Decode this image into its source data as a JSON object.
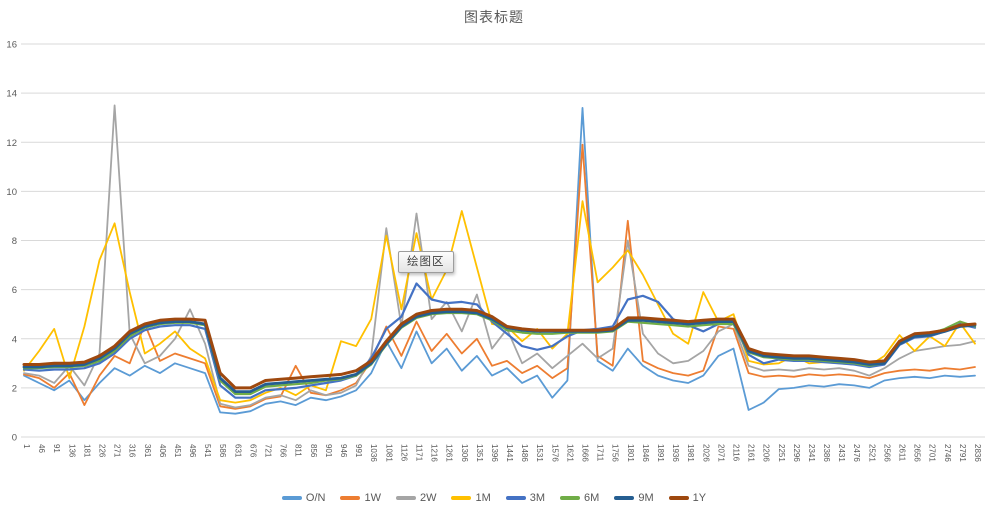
{
  "plot_area_tooltip": {
    "text": "绘图区"
  },
  "chart_data": {
    "type": "line",
    "title": "图表标题",
    "xlabel": "",
    "ylabel": "",
    "ylim": [
      0,
      16
    ],
    "y_ticks": [
      0,
      2,
      4,
      6,
      8,
      10,
      12,
      14,
      16
    ],
    "grid": true,
    "legend_position": "bottom",
    "x": [
      1,
      46,
      91,
      136,
      181,
      226,
      271,
      316,
      361,
      406,
      451,
      496,
      541,
      586,
      631,
      676,
      721,
      766,
      811,
      856,
      901,
      946,
      991,
      1036,
      1081,
      1126,
      1171,
      1216,
      1261,
      1306,
      1351,
      1396,
      1441,
      1486,
      1531,
      1576,
      1621,
      1666,
      1711,
      1756,
      1801,
      1846,
      1891,
      1936,
      1981,
      2026,
      2071,
      2116,
      2161,
      2206,
      2251,
      2296,
      2341,
      2386,
      2431,
      2476,
      2521,
      2566,
      2611,
      2656,
      2701,
      2746,
      2791,
      2836
    ],
    "series": [
      {
        "name": "O/N",
        "color": "#5B9BD5",
        "width": 1.8,
        "values": [
          2.5,
          2.2,
          1.9,
          2.3,
          1.5,
          2.2,
          2.8,
          2.5,
          2.9,
          2.6,
          3.0,
          2.8,
          2.6,
          1.0,
          0.95,
          1.05,
          1.35,
          1.45,
          1.3,
          1.6,
          1.5,
          1.65,
          1.9,
          2.6,
          3.9,
          2.8,
          4.3,
          3.0,
          3.6,
          2.7,
          3.3,
          2.5,
          2.8,
          2.2,
          2.5,
          1.6,
          2.3,
          13.4,
          3.1,
          2.7,
          3.6,
          2.9,
          2.5,
          2.3,
          2.2,
          2.5,
          3.3,
          3.6,
          1.1,
          1.4,
          1.95,
          2.0,
          2.1,
          2.05,
          2.15,
          2.1,
          2.0,
          2.3,
          2.4,
          2.45,
          2.4,
          2.5,
          2.45,
          2.5
        ]
      },
      {
        "name": "1W",
        "color": "#ED7D31",
        "width": 1.8,
        "values": [
          2.55,
          2.4,
          2.0,
          2.6,
          1.3,
          2.5,
          3.3,
          3.0,
          4.6,
          3.1,
          3.4,
          3.2,
          3.0,
          1.25,
          1.15,
          1.25,
          1.55,
          1.65,
          2.9,
          1.8,
          1.7,
          1.9,
          2.2,
          3.1,
          4.5,
          3.3,
          4.7,
          3.5,
          4.2,
          3.4,
          4.0,
          2.9,
          3.1,
          2.6,
          2.9,
          2.4,
          2.8,
          11.9,
          3.3,
          2.9,
          8.8,
          3.1,
          2.8,
          2.6,
          2.5,
          2.7,
          4.5,
          4.4,
          2.6,
          2.45,
          2.5,
          2.45,
          2.55,
          2.5,
          2.55,
          2.5,
          2.4,
          2.6,
          2.7,
          2.75,
          2.7,
          2.8,
          2.75,
          2.85
        ]
      },
      {
        "name": "2W",
        "color": "#A5A5A5",
        "width": 1.8,
        "values": [
          2.6,
          2.5,
          2.2,
          2.9,
          2.1,
          3.4,
          13.5,
          4.2,
          3.0,
          3.3,
          4.0,
          5.2,
          3.8,
          1.35,
          1.2,
          1.3,
          1.6,
          1.7,
          1.5,
          1.9,
          1.7,
          1.8,
          2.1,
          3.3,
          8.5,
          4.5,
          9.1,
          4.8,
          5.5,
          4.3,
          5.8,
          3.6,
          4.4,
          3.0,
          3.4,
          2.8,
          3.3,
          3.8,
          3.2,
          3.6,
          8.0,
          4.2,
          3.4,
          3.0,
          3.1,
          3.5,
          4.3,
          4.6,
          2.9,
          2.7,
          2.75,
          2.7,
          2.8,
          2.75,
          2.8,
          2.7,
          2.5,
          2.8,
          3.2,
          3.5,
          3.6,
          3.7,
          3.75,
          3.9
        ]
      },
      {
        "name": "1M",
        "color": "#FFC000",
        "width": 1.8,
        "values": [
          2.7,
          3.5,
          4.4,
          2.4,
          4.5,
          7.2,
          8.7,
          5.9,
          3.4,
          3.8,
          4.3,
          3.6,
          3.2,
          1.5,
          1.4,
          1.5,
          1.8,
          2.0,
          1.7,
          2.1,
          1.9,
          3.9,
          3.7,
          4.8,
          8.2,
          5.2,
          8.3,
          5.6,
          6.8,
          9.2,
          6.9,
          4.6,
          4.5,
          3.9,
          4.4,
          3.6,
          4.2,
          9.6,
          6.3,
          6.9,
          7.6,
          6.6,
          5.4,
          4.2,
          3.8,
          5.9,
          4.7,
          5.0,
          3.1,
          2.95,
          3.0,
          3.3,
          3.0,
          3.05,
          3.0,
          2.95,
          2.9,
          3.3,
          4.15,
          3.5,
          4.1,
          3.7,
          4.65,
          3.8
        ]
      },
      {
        "name": "3M",
        "color": "#4472C4",
        "width": 2.2,
        "values": [
          2.75,
          2.7,
          2.75,
          2.75,
          2.8,
          3.0,
          3.4,
          4.0,
          4.35,
          4.5,
          4.55,
          4.55,
          4.4,
          2.1,
          1.6,
          1.6,
          1.9,
          1.95,
          2.0,
          2.1,
          2.2,
          2.3,
          2.5,
          3.2,
          4.4,
          4.9,
          6.25,
          5.6,
          5.45,
          5.5,
          5.4,
          4.7,
          4.2,
          3.7,
          3.55,
          3.7,
          4.1,
          4.35,
          4.4,
          4.5,
          5.6,
          5.75,
          5.5,
          4.8,
          4.55,
          4.3,
          4.6,
          4.65,
          3.35,
          3.0,
          3.15,
          3.1,
          3.1,
          3.05,
          3.0,
          2.95,
          2.85,
          2.95,
          3.75,
          4.05,
          4.1,
          4.3,
          4.6,
          4.45
        ]
      },
      {
        "name": "6M",
        "color": "#70AD47",
        "width": 2.2,
        "values": [
          2.8,
          2.8,
          2.85,
          2.85,
          2.9,
          3.1,
          3.5,
          4.1,
          4.45,
          4.6,
          4.65,
          4.65,
          4.55,
          2.3,
          1.75,
          1.75,
          2.05,
          2.1,
          2.15,
          2.2,
          2.3,
          2.35,
          2.5,
          2.95,
          3.75,
          4.45,
          4.85,
          5.0,
          5.05,
          5.05,
          5.0,
          4.75,
          4.35,
          4.25,
          4.2,
          4.2,
          4.25,
          4.25,
          4.25,
          4.3,
          4.7,
          4.65,
          4.6,
          4.55,
          4.5,
          4.55,
          4.6,
          4.6,
          3.45,
          3.25,
          3.2,
          3.15,
          3.15,
          3.1,
          3.05,
          3.0,
          2.9,
          3.0,
          3.85,
          4.15,
          4.2,
          4.4,
          4.7,
          4.5
        ]
      },
      {
        "name": "9M",
        "color": "#255E91",
        "width": 2.8,
        "values": [
          2.85,
          2.85,
          2.9,
          2.9,
          2.95,
          3.2,
          3.6,
          4.2,
          4.5,
          4.65,
          4.7,
          4.7,
          4.6,
          2.4,
          1.85,
          1.85,
          2.15,
          2.2,
          2.25,
          2.3,
          2.35,
          2.4,
          2.55,
          3.0,
          3.8,
          4.5,
          4.9,
          5.05,
          5.1,
          5.1,
          5.05,
          4.8,
          4.45,
          4.35,
          4.3,
          4.3,
          4.3,
          4.3,
          4.3,
          4.35,
          4.75,
          4.75,
          4.7,
          4.65,
          4.6,
          4.65,
          4.7,
          4.7,
          3.5,
          3.3,
          3.25,
          3.2,
          3.2,
          3.15,
          3.1,
          3.05,
          2.95,
          3.0,
          3.8,
          4.1,
          4.15,
          4.3,
          4.5,
          4.55
        ]
      },
      {
        "name": "1Y",
        "color": "#9E480E",
        "width": 3.0,
        "values": [
          2.95,
          2.95,
          3.0,
          3.0,
          3.05,
          3.3,
          3.7,
          4.3,
          4.6,
          4.75,
          4.8,
          4.8,
          4.75,
          2.6,
          2.0,
          2.0,
          2.3,
          2.35,
          2.4,
          2.45,
          2.5,
          2.55,
          2.7,
          3.1,
          3.9,
          4.6,
          5.0,
          5.15,
          5.2,
          5.2,
          5.15,
          4.9,
          4.5,
          4.4,
          4.35,
          4.35,
          4.35,
          4.35,
          4.35,
          4.4,
          4.85,
          4.85,
          4.8,
          4.75,
          4.7,
          4.75,
          4.8,
          4.8,
          3.6,
          3.4,
          3.35,
          3.3,
          3.3,
          3.25,
          3.2,
          3.15,
          3.05,
          3.1,
          3.9,
          4.2,
          4.25,
          4.35,
          4.55,
          4.6
        ]
      }
    ],
    "style": {
      "grid_color": "#D9D9D9",
      "axis_text_color": "#595959",
      "title_color": "#595959",
      "background": "#FFFFFF"
    }
  }
}
